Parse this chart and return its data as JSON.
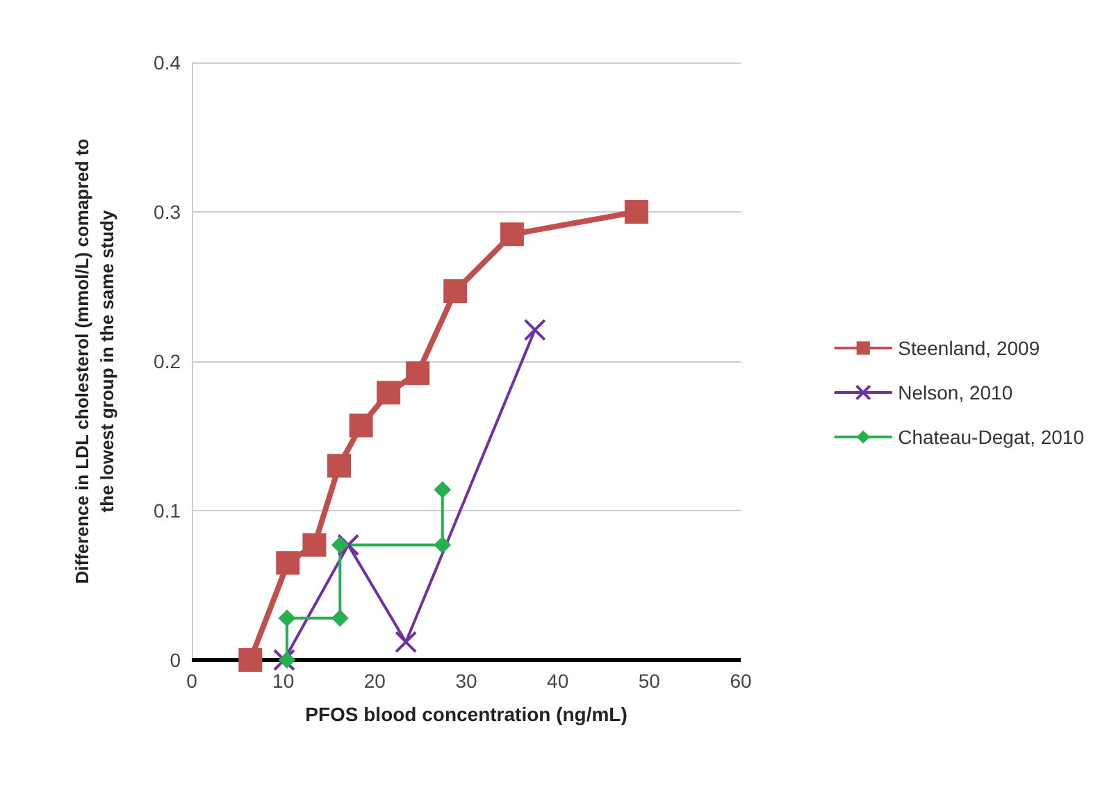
{
  "chart_data": {
    "type": "line",
    "xlabel": "PFOS blood concentration (ng/mL)",
    "ylabel": "Difference in LDL cholesterol (mmol/L) comapred to\nthe lowest group in the same study",
    "xlim": [
      0,
      60
    ],
    "xticks": [
      0,
      10,
      20,
      30,
      40,
      50,
      60
    ],
    "ylim": [
      0,
      0.4
    ],
    "yticks": [
      0,
      0.1,
      0.2,
      0.3,
      0.4
    ],
    "grid": "y",
    "legend": "right",
    "line_style": "solid",
    "series": [
      {
        "name": "Steenland, 2009",
        "color": "#c0504d",
        "marker": "square",
        "x": [
          6.4,
          10.5,
          13.4,
          16.1,
          18.5,
          21.5,
          24.7,
          28.8,
          35,
          48.6
        ],
        "values": [
          0,
          0.065,
          0.077,
          0.13,
          0.157,
          0.179,
          0.192,
          0.247,
          0.285,
          0.3
        ]
      },
      {
        "name": "Nelson, 2010",
        "color": "#7030a0",
        "marker": "cross",
        "x": [
          10.1,
          17.1,
          23.4,
          37.5
        ],
        "values": [
          0,
          0.077,
          0.012,
          0.221
        ]
      },
      {
        "name": "Chateau-Degat, 2010",
        "color": "#27b050",
        "marker": "diamond",
        "x": [
          10.4,
          10.4,
          16.2,
          16.2,
          27.4,
          27.4
        ],
        "values": [
          0,
          0.028,
          0.028,
          0.077,
          0.077,
          0.114
        ]
      }
    ]
  }
}
